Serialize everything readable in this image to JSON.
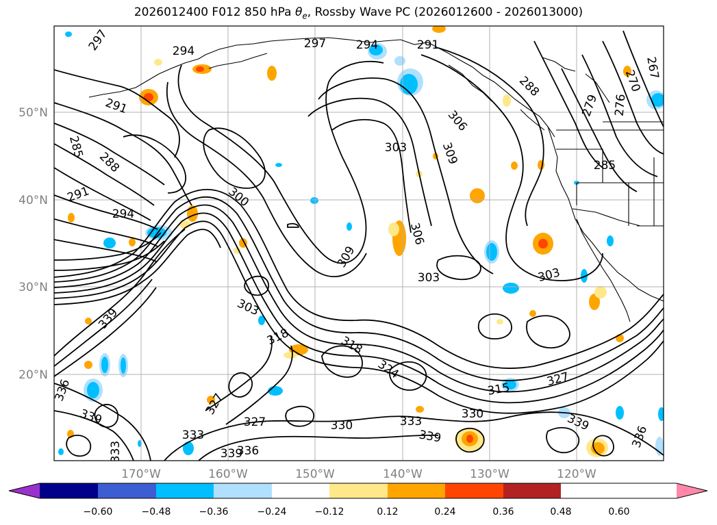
{
  "title": {
    "prefix": "2026012400 F012 850 hPa ",
    "var": "θ",
    "sub": "e",
    "suffix": ", Rossby Wave PC (2026012600 - 2026013000)"
  },
  "map": {
    "lon_ticks": [
      "170°W",
      "160°W",
      "150°W",
      "140°W",
      "130°W",
      "120°W"
    ],
    "lat_ticks": [
      "50°N",
      "40°N",
      "30°N",
      "20°N"
    ],
    "contour_labels": [
      {
        "text": "297",
        "rot": -55
      },
      {
        "text": "294",
        "rot": 0
      },
      {
        "text": "297",
        "rot": 0
      },
      {
        "text": "294",
        "rot": 0
      },
      {
        "text": "291",
        "rot": 0
      },
      {
        "text": "288",
        "rot": 45
      },
      {
        "text": "279",
        "rot": -70
      },
      {
        "text": "267",
        "rot": 80
      },
      {
        "text": "270",
        "rot": 70
      },
      {
        "text": "276",
        "rot": -85
      },
      {
        "text": "291",
        "rot": 20
      },
      {
        "text": "285",
        "rot": 75
      },
      {
        "text": "288",
        "rot": 45
      },
      {
        "text": "291",
        "rot": -20
      },
      {
        "text": "294",
        "rot": 0
      },
      {
        "text": "300",
        "rot": 40
      },
      {
        "text": "306",
        "rot": 50
      },
      {
        "text": "303",
        "rot": 0
      },
      {
        "text": "309",
        "rot": 70
      },
      {
        "text": "285",
        "rot": 0
      },
      {
        "text": "306",
        "rot": 75
      },
      {
        "text": "309",
        "rot": -60
      },
      {
        "text": "303",
        "rot": 0
      },
      {
        "text": "303",
        "rot": -15
      },
      {
        "text": "303",
        "rot": 25
      },
      {
        "text": "318",
        "rot": -25
      },
      {
        "text": "318",
        "rot": 30
      },
      {
        "text": "324",
        "rot": 35
      },
      {
        "text": "339",
        "rot": -50
      },
      {
        "text": "336",
        "rot": -70
      },
      {
        "text": "339",
        "rot": 20
      },
      {
        "text": "327",
        "rot": -60
      },
      {
        "text": "327",
        "rot": 0
      },
      {
        "text": "330",
        "rot": 0
      },
      {
        "text": "333",
        "rot": 0
      },
      {
        "text": "339",
        "rot": 10
      },
      {
        "text": "330",
        "rot": 0
      },
      {
        "text": "315",
        "rot": -10
      },
      {
        "text": "327",
        "rot": -15
      },
      {
        "text": "339",
        "rot": 25
      },
      {
        "text": "336",
        "rot": -70
      },
      {
        "text": "333",
        "rot": -90
      },
      {
        "text": "333",
        "rot": 0
      },
      {
        "text": "336",
        "rot": 0
      },
      {
        "text": "339",
        "rot": 0
      }
    ]
  },
  "colorbar": {
    "levels": [
      "−0.60",
      "−0.48",
      "−0.36",
      "−0.24",
      "−0.12",
      "0.12",
      "0.24",
      "0.36",
      "0.48",
      "0.60"
    ],
    "colors": [
      "#9932cc",
      "#00008b",
      "#3c5ed2",
      "#00bfff",
      "#b0e0fe",
      "#ffffff",
      "#ffe88a",
      "#ffa500",
      "#ff4500",
      "#b22222",
      "#ff88aa"
    ]
  }
}
